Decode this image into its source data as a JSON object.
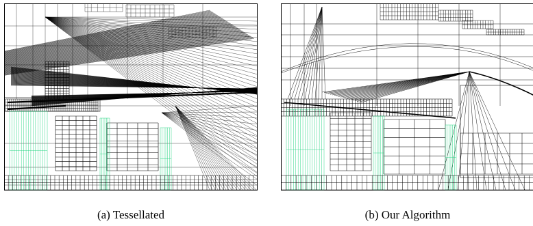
{
  "figure": {
    "subfigures": [
      {
        "id": "a",
        "caption": "(a) Tessellated"
      },
      {
        "id": "b",
        "caption": "(b) Our Algorithm"
      }
    ]
  },
  "colors": {
    "line": "#000000",
    "accent": "#19d27a"
  }
}
